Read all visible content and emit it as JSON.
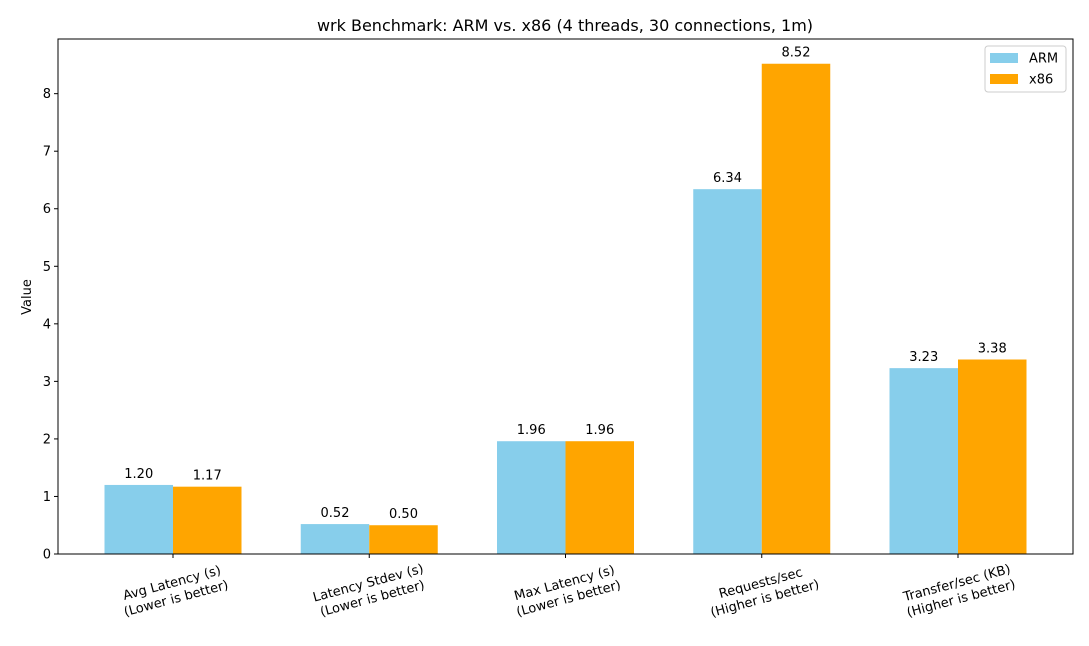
{
  "chart_data": {
    "type": "bar",
    "title": "wrk Benchmark: ARM vs. x86 (4 threads, 30 connections, 1m)",
    "xlabel": "",
    "ylabel": "Value",
    "ylim": [
      0,
      8.95
    ],
    "yticks": [
      0,
      1,
      2,
      3,
      4,
      5,
      6,
      7,
      8
    ],
    "grid": false,
    "legend_position": "top-right",
    "categories": [
      [
        "Avg Latency (s)",
        "(Lower is better)"
      ],
      [
        "Latency Stdev (s)",
        "(Lower is better)"
      ],
      [
        "Max Latency (s)",
        "(Lower is better)"
      ],
      [
        "Requests/sec",
        "(Higher is better)"
      ],
      [
        "Transfer/sec (KB)",
        "(Higher is better)"
      ]
    ],
    "series": [
      {
        "name": "ARM",
        "color": "#87ceeb",
        "values": [
          1.2,
          0.52,
          1.96,
          6.34,
          3.23
        ]
      },
      {
        "name": "x86",
        "color": "#ffa500",
        "values": [
          1.17,
          0.5,
          1.96,
          8.52,
          3.38
        ]
      }
    ]
  }
}
